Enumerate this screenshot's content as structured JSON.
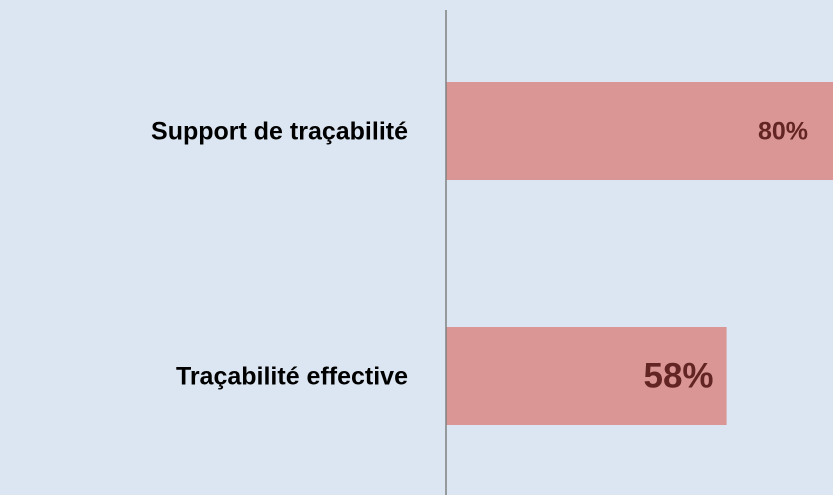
{
  "chart_data": {
    "type": "hbar",
    "categories": [
      "Support de traçabilité",
      "Traçabilité effective"
    ],
    "values": [
      80,
      58
    ],
    "value_labels": [
      "80%",
      "58%"
    ],
    "color": "#d99694",
    "xlim": [
      0,
      80
    ]
  }
}
